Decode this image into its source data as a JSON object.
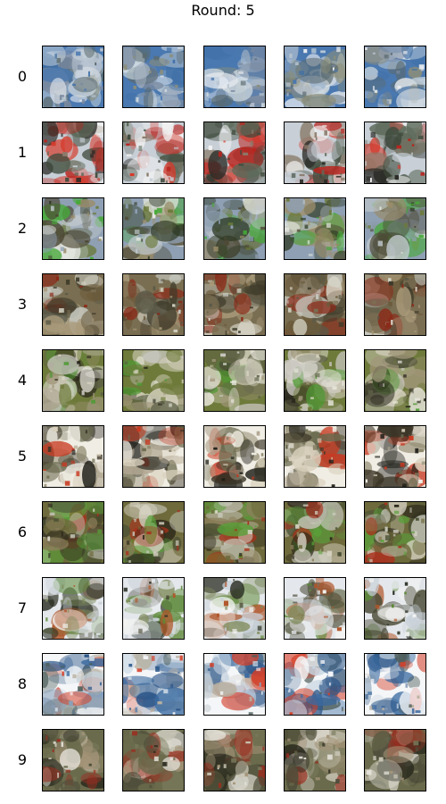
{
  "title": "Round: 5",
  "row_labels": [
    "0",
    "1",
    "2",
    "3",
    "4",
    "5",
    "6",
    "7",
    "8",
    "9"
  ],
  "palettes": {
    "0": [
      "#4a78b0",
      "#b8c4d0",
      "#e8ecf0",
      "#5a6a6e",
      "#7a8aa0",
      "#c9d4dc",
      "#3e6fa6",
      "#8b8e7a"
    ],
    "1": [
      "#c8cfd6",
      "#2a2a26",
      "#b8241e",
      "#f2f2f2",
      "#5d6a5a",
      "#d53a2c",
      "#8a7b6a",
      "#3f4a3c"
    ],
    "2": [
      "#8fa0b4",
      "#6c7a3c",
      "#46a838",
      "#c0c8cc",
      "#4e4a36",
      "#9a8c6a",
      "#e6e8e2",
      "#2f3a24"
    ],
    "3": [
      "#7a6e52",
      "#c6c8c0",
      "#3e3a2a",
      "#8a2a18",
      "#a89a7a",
      "#5a5a48",
      "#d8d6c8",
      "#6b5a3a"
    ],
    "4": [
      "#6e7a3a",
      "#d6d2c0",
      "#2c2a1e",
      "#4f9a34",
      "#a0967a",
      "#c9c6c0",
      "#5c5e44",
      "#e8e6dc"
    ],
    "5": [
      "#f0ede4",
      "#3a3426",
      "#c83a22",
      "#8a8468",
      "#d8d0bc",
      "#1e1e18",
      "#6a6a4e",
      "#b0a690"
    ],
    "6": [
      "#6e6a3c",
      "#c4c4b6",
      "#2e2a1c",
      "#a8301c",
      "#58a038",
      "#8c805c",
      "#dad6c8",
      "#4a5034"
    ],
    "7": [
      "#e4e8ec",
      "#5e8a3a",
      "#2a2e22",
      "#b0562a",
      "#c8d0d8",
      "#7e8a5a",
      "#f4f4f2",
      "#4a4a36"
    ],
    "8": [
      "#f4f6f8",
      "#2c5688",
      "#d4402a",
      "#8aa0b8",
      "#4e5e5a",
      "#c8d6e2",
      "#3a6aa0",
      "#b8b0a0"
    ],
    "9": [
      "#6a6a4c",
      "#c8c4b4",
      "#2a2a1e",
      "#9a2e20",
      "#e8e6de",
      "#7a7a5c",
      "#a49478",
      "#4e4e3a"
    ]
  }
}
